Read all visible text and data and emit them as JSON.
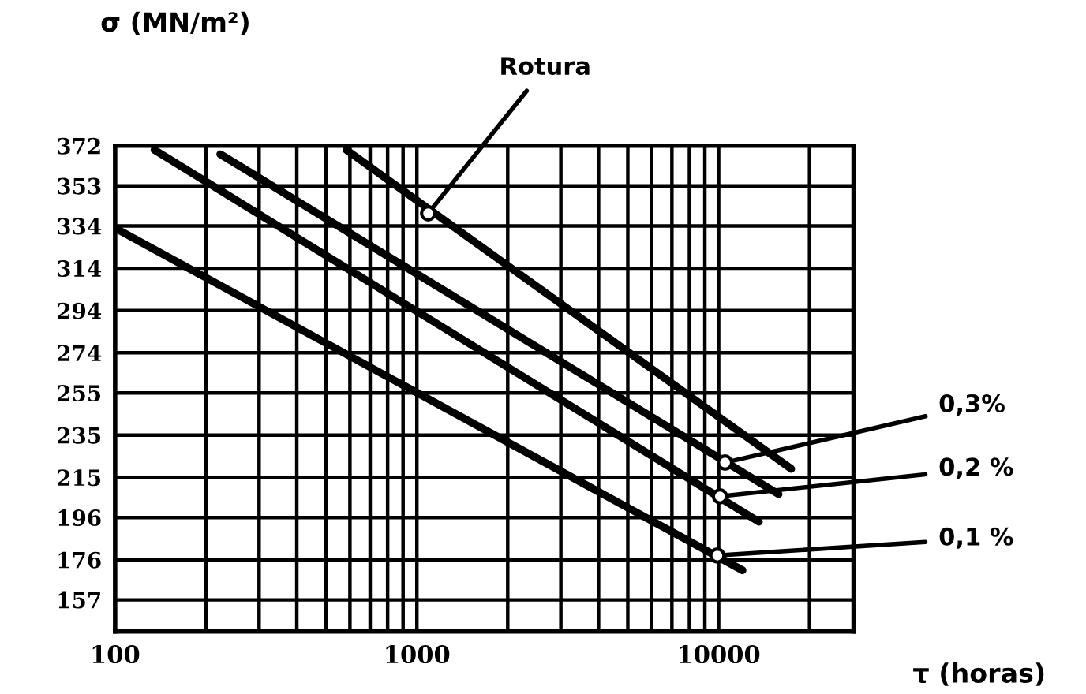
{
  "chart_data": {
    "type": "line",
    "ylabel": "σ (MN/m²)",
    "xlabel": "τ (horas)",
    "log": "x",
    "xlim": [
      100,
      28000
    ],
    "xticks": [
      100,
      1000,
      10000
    ],
    "ylim": [
      142,
      372
    ],
    "yticks": [
      372,
      353,
      334,
      314,
      294,
      274,
      255,
      235,
      215,
      196,
      176,
      157
    ],
    "grid": true,
    "marker": "none",
    "line_style": "solid",
    "series": [
      {
        "color": "#000000",
        "x": [
          100,
          12000
        ],
        "values": [
          333,
          171
        ]
      },
      {
        "color": "#000000",
        "x": [
          135,
          13600
        ],
        "values": [
          370,
          194
        ]
      },
      {
        "color": "#000000",
        "x": [
          223,
          15800
        ],
        "values": [
          368,
          207
        ]
      },
      {
        "color": "#000000",
        "x": [
          584,
          17400
        ],
        "values": [
          370,
          219
        ]
      }
    ],
    "annotations": [
      {
        "text": "Rotura",
        "x": 1090,
        "y": 340
      },
      {
        "text": "0,3%",
        "x": 10500,
        "y": 222
      },
      {
        "text": "0,2 %",
        "x": 10100,
        "y": 206
      },
      {
        "text": "0,1 %",
        "x": 9900,
        "y": 178
      }
    ]
  }
}
